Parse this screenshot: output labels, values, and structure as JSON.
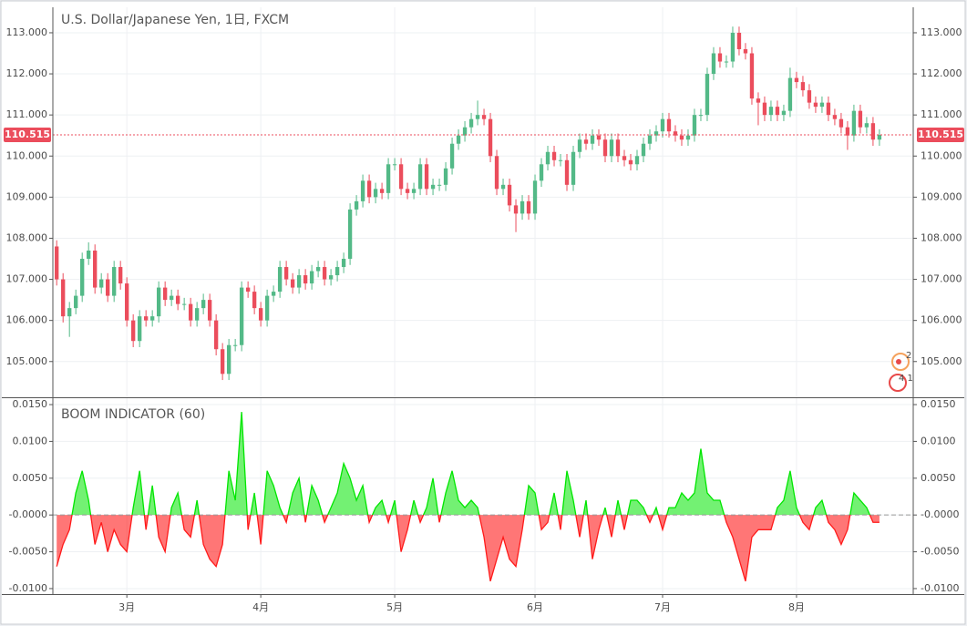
{
  "chart_data": [
    {
      "type": "candlestick",
      "title": "U.S. Dollar/Japanese Yen, 1日, FXCM",
      "open": [
        107.8,
        107.0,
        106.1,
        106.3,
        106.6,
        107.5,
        107.7,
        106.8,
        107.0,
        106.6,
        107.3,
        106.9,
        106.0,
        105.5,
        106.1,
        106.0,
        106.1,
        106.8,
        106.5,
        106.6,
        106.4,
        106.4,
        106.0,
        106.3,
        106.5,
        106.0,
        105.3,
        104.7,
        105.4,
        105.4,
        106.8,
        106.7,
        106.3,
        106.0,
        106.6,
        106.7,
        107.3,
        107.0,
        106.8,
        107.1,
        106.9,
        107.2,
        107.3,
        107.0,
        107.1,
        107.3,
        107.5,
        108.7,
        108.9,
        109.4,
        109.0,
        109.2,
        109.1,
        109.8,
        109.8,
        109.2,
        109.1,
        109.2,
        109.8,
        109.2,
        109.3,
        109.3,
        109.7,
        110.3,
        110.5,
        110.7,
        110.9,
        111.0,
        110.9,
        110.0,
        109.2,
        109.3,
        108.8,
        108.6,
        108.9,
        108.6,
        109.4,
        109.8,
        110.1,
        109.9,
        109.9,
        109.3,
        110.1,
        110.4,
        110.3,
        110.5,
        110.4,
        110.0,
        110.4,
        110.0,
        109.9,
        109.8,
        110.0,
        110.3,
        110.5,
        110.6,
        110.9,
        110.6,
        110.5,
        110.4,
        110.5,
        111.0,
        111.0,
        112.0,
        112.5,
        112.3,
        112.3,
        113.0,
        112.6,
        112.5,
        111.4,
        111.3,
        111.0,
        111.2,
        111.0,
        111.1,
        111.9,
        111.8,
        111.6,
        111.3,
        111.2,
        111.3,
        111.0,
        110.9,
        110.7,
        110.5,
        111.1,
        110.7,
        110.8,
        110.4
      ],
      "high": [
        107.95,
        107.15,
        106.45,
        106.75,
        107.65,
        107.9,
        107.85,
        107.15,
        107.15,
        107.45,
        107.45,
        107.05,
        106.15,
        106.25,
        106.25,
        106.25,
        106.95,
        106.95,
        106.75,
        106.75,
        106.55,
        106.55,
        106.45,
        106.65,
        106.65,
        106.15,
        105.45,
        105.55,
        105.55,
        106.95,
        106.95,
        106.85,
        106.45,
        106.75,
        106.85,
        107.45,
        107.45,
        107.15,
        107.25,
        107.25,
        107.35,
        107.45,
        107.45,
        107.25,
        107.45,
        107.65,
        108.85,
        109.05,
        109.55,
        109.55,
        109.35,
        109.35,
        109.95,
        109.95,
        109.95,
        109.35,
        109.35,
        109.95,
        109.95,
        109.45,
        109.45,
        109.85,
        110.45,
        110.65,
        110.85,
        111.05,
        111.35,
        111.15,
        111.05,
        110.15,
        109.45,
        109.45,
        108.95,
        109.05,
        109.05,
        109.55,
        109.95,
        110.25,
        110.25,
        110.05,
        110.05,
        110.25,
        110.55,
        110.55,
        110.65,
        110.65,
        110.55,
        110.55,
        110.55,
        110.15,
        110.05,
        110.15,
        110.45,
        110.65,
        110.75,
        111.05,
        111.05,
        110.75,
        110.65,
        110.65,
        111.15,
        111.15,
        112.15,
        112.65,
        112.65,
        112.45,
        113.15,
        113.15,
        112.75,
        112.65,
        111.55,
        111.45,
        111.35,
        111.35,
        111.25,
        112.15,
        112.05,
        111.95,
        111.75,
        111.45,
        111.45,
        111.45,
        111.15,
        111.05,
        110.85,
        111.25,
        111.25,
        110.95,
        110.95,
        110.65
      ],
      "low": [
        106.85,
        105.95,
        105.6,
        106.15,
        106.45,
        107.35,
        106.65,
        106.65,
        106.45,
        106.45,
        106.75,
        105.85,
        105.35,
        105.35,
        105.85,
        105.85,
        105.95,
        106.35,
        106.35,
        106.25,
        106.25,
        105.85,
        105.85,
        106.15,
        105.85,
        105.15,
        104.55,
        104.55,
        105.25,
        105.25,
        106.55,
        106.15,
        105.85,
        105.85,
        106.45,
        106.55,
        106.85,
        106.65,
        106.65,
        106.75,
        106.75,
        107.05,
        106.85,
        106.85,
        106.95,
        107.15,
        107.35,
        108.55,
        108.75,
        108.85,
        108.85,
        108.95,
        108.95,
        109.65,
        109.05,
        108.95,
        108.95,
        109.05,
        109.05,
        109.05,
        109.15,
        109.15,
        109.55,
        110.15,
        110.35,
        110.55,
        110.75,
        110.75,
        109.85,
        109.05,
        109.05,
        108.65,
        108.15,
        108.45,
        108.45,
        108.45,
        109.25,
        109.65,
        109.75,
        109.75,
        109.15,
        109.15,
        109.95,
        110.15,
        110.15,
        110.25,
        109.85,
        109.85,
        109.85,
        109.75,
        109.65,
        109.65,
        109.85,
        110.15,
        110.35,
        110.45,
        110.45,
        110.35,
        110.25,
        110.25,
        110.35,
        110.85,
        110.85,
        111.85,
        112.15,
        112.15,
        112.15,
        112.45,
        112.35,
        111.25,
        110.75,
        110.85,
        110.85,
        110.85,
        110.85,
        110.95,
        111.65,
        111.45,
        111.15,
        111.05,
        111.05,
        110.85,
        110.75,
        110.55,
        110.15,
        110.35,
        110.55,
        110.55,
        110.25,
        110.25
      ],
      "close": [
        107.0,
        106.1,
        106.3,
        106.6,
        107.5,
        107.7,
        106.8,
        107.0,
        106.6,
        107.3,
        106.9,
        106.0,
        105.5,
        106.1,
        106.0,
        106.1,
        106.8,
        106.5,
        106.6,
        106.4,
        106.4,
        106.0,
        106.3,
        106.5,
        106.0,
        105.3,
        104.7,
        105.4,
        105.4,
        106.8,
        106.7,
        106.3,
        106.0,
        106.6,
        106.7,
        107.3,
        107.0,
        106.8,
        107.1,
        106.9,
        107.2,
        107.3,
        107.0,
        107.1,
        107.3,
        107.5,
        108.7,
        108.9,
        109.4,
        109.0,
        109.2,
        109.1,
        109.8,
        109.8,
        109.2,
        109.1,
        109.2,
        109.8,
        109.2,
        109.3,
        109.3,
        109.7,
        110.3,
        110.5,
        110.7,
        110.9,
        111.0,
        110.9,
        110.0,
        109.2,
        109.3,
        108.8,
        108.6,
        108.9,
        108.6,
        109.4,
        109.8,
        110.1,
        109.9,
        109.9,
        109.3,
        110.1,
        110.4,
        110.3,
        110.5,
        110.4,
        110.0,
        110.4,
        110.0,
        109.9,
        109.8,
        110.0,
        110.3,
        110.5,
        110.6,
        110.9,
        110.6,
        110.5,
        110.4,
        110.5,
        111.0,
        111.0,
        112.0,
        112.5,
        112.3,
        112.3,
        113.0,
        112.6,
        112.5,
        111.4,
        111.3,
        111.0,
        111.2,
        111.0,
        111.1,
        111.9,
        111.8,
        111.6,
        111.3,
        111.2,
        111.3,
        111.0,
        110.9,
        110.7,
        110.5,
        111.1,
        110.7,
        110.8,
        110.4,
        110.515
      ],
      "up_color": "#53b987",
      "down_color": "#eb4d5c",
      "xlim": [
        -0.6,
        134.3
      ],
      "ylim": [
        104.13,
        113.62
      ],
      "yticks": [
        {
          "value": 105,
          "label": "105.000"
        },
        {
          "value": 106,
          "label": "106.000"
        },
        {
          "value": 107,
          "label": "107.000"
        },
        {
          "value": 108,
          "label": "108.000"
        },
        {
          "value": 109,
          "label": "109.000"
        },
        {
          "value": 110,
          "label": "110.000"
        },
        {
          "value": 111,
          "label": "111.000"
        },
        {
          "value": 112,
          "label": "112.000"
        },
        {
          "value": 113,
          "label": "113.000"
        }
      ],
      "grid": true
    },
    {
      "type": "area",
      "title": "BOOM INDICATOR (60)",
      "values": [
        -0.007,
        -0.004,
        -0.002,
        0.003,
        0.006,
        0.002,
        -0.004,
        -0.001,
        -0.005,
        -0.002,
        -0.004,
        -0.005,
        0.001,
        0.006,
        -0.002,
        0.004,
        -0.003,
        -0.005,
        0.001,
        0.003,
        -0.002,
        -0.003,
        0.002,
        -0.004,
        -0.006,
        -0.007,
        -0.004,
        0.006,
        0.002,
        0.014,
        -0.002,
        0.003,
        -0.004,
        0.006,
        0.004,
        0.001,
        -0.001,
        0.003,
        0.005,
        -0.001,
        0.004,
        0.002,
        -0.001,
        0.001,
        0.003,
        0.007,
        0.005,
        0.002,
        0.004,
        -0.001,
        0.001,
        0.002,
        -0.001,
        0.002,
        -0.005,
        -0.002,
        0.002,
        -0.001,
        0.001,
        0.005,
        -0.001,
        0.003,
        0.006,
        0.002,
        0.001,
        0.002,
        0.001,
        -0.003,
        -0.009,
        -0.006,
        -0.003,
        -0.006,
        -0.007,
        -0.002,
        0.004,
        0.003,
        -0.002,
        -0.001,
        0.003,
        -0.002,
        0.006,
        0.002,
        -0.003,
        0.002,
        -0.006,
        -0.002,
        0.001,
        -0.003,
        0.002,
        -0.002,
        0.002,
        0.002,
        0.001,
        -0.001,
        0.001,
        -0.002,
        0.001,
        0.001,
        0.003,
        0.002,
        0.003,
        0.009,
        0.003,
        0.002,
        0.002,
        -0.001,
        -0.003,
        -0.006,
        -0.009,
        -0.003,
        -0.002,
        -0.002,
        -0.002,
        0.001,
        0.002,
        0.006,
        0.001,
        -0.001,
        -0.002,
        0.001,
        0.002,
        -0.001,
        -0.002,
        -0.004,
        -0.002,
        0.003,
        0.002,
        0.001,
        -0.001,
        -0.001
      ],
      "positive_color": "#00e600",
      "negative_color": "#ff1a1a",
      "xlim": [
        -0.6,
        134.3
      ],
      "ylim": [
        -0.01075,
        0.01587
      ],
      "yticks": [
        {
          "value": 0.015,
          "label": "0.0150"
        },
        {
          "value": 0.01,
          "label": "0.0100"
        },
        {
          "value": 0.005,
          "label": "0.0050"
        },
        {
          "value": 0,
          "label": "-0.0000"
        },
        {
          "value": -0.005,
          "label": "-0.0050"
        },
        {
          "value": -0.01,
          "label": "-0.0100"
        }
      ],
      "xticks": [
        {
          "value": 11,
          "label": "3月"
        },
        {
          "value": 32,
          "label": "4月"
        },
        {
          "value": 53,
          "label": "5月"
        },
        {
          "value": 75,
          "label": "6月"
        },
        {
          "value": 95,
          "label": "7月"
        },
        {
          "value": 116,
          "label": "8月"
        }
      ],
      "grid": true
    }
  ]
}
